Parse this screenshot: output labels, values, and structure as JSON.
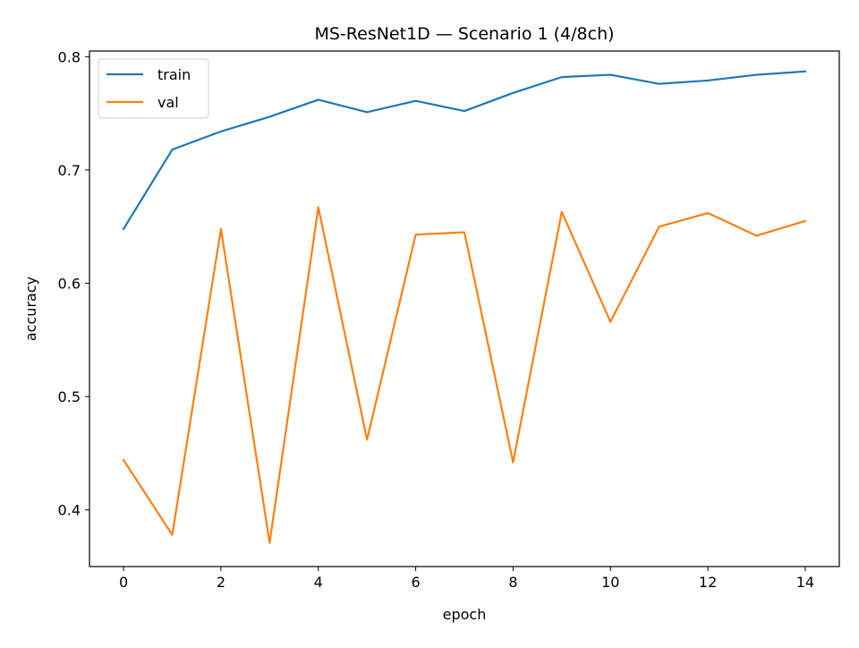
{
  "chart_data": {
    "type": "line",
    "title": "MS-ResNet1D — Scenario 1 (4/8ch)",
    "xlabel": "epoch",
    "ylabel": "accuracy",
    "x": [
      0,
      1,
      2,
      3,
      4,
      5,
      6,
      7,
      8,
      9,
      10,
      11,
      12,
      13,
      14
    ],
    "xlim": [
      -0.7,
      14.7
    ],
    "ylim": [
      0.35,
      0.805
    ],
    "xticks": [
      0,
      2,
      4,
      6,
      8,
      10,
      12,
      14
    ],
    "yticks": [
      0.4,
      0.5,
      0.6,
      0.7,
      0.8
    ],
    "xtick_labels": [
      "0",
      "2",
      "4",
      "6",
      "8",
      "10",
      "12",
      "14"
    ],
    "ytick_labels": [
      "0.4",
      "0.5",
      "0.6",
      "0.7",
      "0.8"
    ],
    "grid": false,
    "legend_position": "top-left",
    "series": [
      {
        "name": "train",
        "color": "#1f77b4",
        "values": [
          0.648,
          0.718,
          0.734,
          0.747,
          0.762,
          0.751,
          0.761,
          0.752,
          0.768,
          0.782,
          0.784,
          0.776,
          0.779,
          0.784,
          0.787
        ]
      },
      {
        "name": "val",
        "color": "#ff7f0e",
        "values": [
          0.444,
          0.378,
          0.648,
          0.371,
          0.667,
          0.462,
          0.643,
          0.645,
          0.442,
          0.663,
          0.566,
          0.65,
          0.662,
          0.642,
          0.655
        ]
      }
    ]
  }
}
